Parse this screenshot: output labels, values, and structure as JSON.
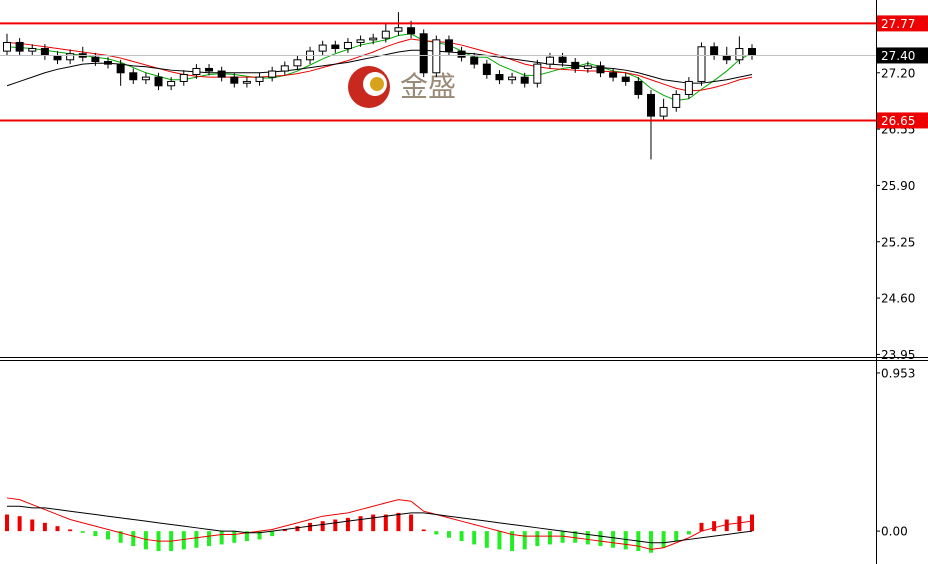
{
  "chart_data": [
    {
      "type": "candlestick",
      "watermark": "金盛",
      "open": [
        27.45,
        27.55,
        27.45,
        27.48,
        27.4,
        27.35,
        27.42,
        27.38,
        27.33,
        27.3,
        27.2,
        27.12,
        27.15,
        27.05,
        27.1,
        27.18,
        27.25,
        27.22,
        27.15,
        27.08,
        27.1,
        27.15,
        27.22,
        27.28,
        27.35,
        27.45,
        27.52,
        27.48,
        27.55,
        27.58,
        27.6,
        27.68,
        27.72,
        27.65,
        27.2,
        27.58,
        27.45,
        27.38,
        27.3,
        27.18,
        27.12,
        27.15,
        27.08,
        27.3,
        27.38,
        27.32,
        27.25,
        27.28,
        27.2,
        27.15,
        27.1,
        26.95,
        26.7,
        26.8,
        26.95,
        27.1,
        27.5,
        27.4,
        27.35,
        27.48
      ],
      "high": [
        27.65,
        27.6,
        27.53,
        27.53,
        27.45,
        27.47,
        27.5,
        27.43,
        27.38,
        27.35,
        27.25,
        27.2,
        27.2,
        27.15,
        27.23,
        27.3,
        27.3,
        27.27,
        27.2,
        27.15,
        27.2,
        27.27,
        27.33,
        27.4,
        27.5,
        27.57,
        27.57,
        27.6,
        27.63,
        27.65,
        27.78,
        27.9,
        27.8,
        27.7,
        27.63,
        27.63,
        27.5,
        27.43,
        27.35,
        27.23,
        27.2,
        27.2,
        27.35,
        27.43,
        27.43,
        27.37,
        27.33,
        27.33,
        27.25,
        27.2,
        27.15,
        27.0,
        26.9,
        27.0,
        27.15,
        27.55,
        27.55,
        27.5,
        27.62,
        27.53
      ],
      "low": [
        27.4,
        27.4,
        27.4,
        27.35,
        27.3,
        27.3,
        27.33,
        27.28,
        27.25,
        27.05,
        27.07,
        27.07,
        27.0,
        27.0,
        27.05,
        27.13,
        27.17,
        27.1,
        27.03,
        27.03,
        27.05,
        27.1,
        27.17,
        27.23,
        27.3,
        27.4,
        27.43,
        27.43,
        27.5,
        27.53,
        27.55,
        27.63,
        27.6,
        27.15,
        27.15,
        27.4,
        27.33,
        27.25,
        27.13,
        27.07,
        27.07,
        27.03,
        27.03,
        27.25,
        27.27,
        27.2,
        27.2,
        27.15,
        27.1,
        27.05,
        26.9,
        26.2,
        26.65,
        26.75,
        26.9,
        27.05,
        27.35,
        27.3,
        27.3,
        27.35
      ],
      "close": [
        27.55,
        27.45,
        27.48,
        27.4,
        27.35,
        27.42,
        27.38,
        27.33,
        27.3,
        27.2,
        27.12,
        27.15,
        27.05,
        27.1,
        27.18,
        27.25,
        27.22,
        27.15,
        27.08,
        27.1,
        27.15,
        27.22,
        27.28,
        27.35,
        27.45,
        27.52,
        27.48,
        27.55,
        27.58,
        27.6,
        27.68,
        27.72,
        27.65,
        27.2,
        27.58,
        27.45,
        27.38,
        27.3,
        27.18,
        27.12,
        27.15,
        27.08,
        27.3,
        27.38,
        27.32,
        27.25,
        27.28,
        27.2,
        27.15,
        27.1,
        26.95,
        26.7,
        26.8,
        26.95,
        27.1,
        27.5,
        27.4,
        27.35,
        27.48,
        27.4
      ],
      "series": [
        {
          "color": "#00aa00",
          "values": [
            27.5,
            27.49,
            27.48,
            27.46,
            27.44,
            27.42,
            27.4,
            27.38,
            27.36,
            27.32,
            27.26,
            27.2,
            27.16,
            27.12,
            27.12,
            27.15,
            27.18,
            27.19,
            27.18,
            27.16,
            27.14,
            27.14,
            27.17,
            27.22,
            27.29,
            27.36,
            27.42,
            27.47,
            27.52,
            27.55,
            27.58,
            27.63,
            27.65,
            27.57,
            27.55,
            27.52,
            27.45,
            27.38,
            27.38,
            27.29,
            27.23,
            27.17,
            27.17,
            27.21,
            27.25,
            27.27,
            27.31,
            27.27,
            27.22,
            27.2,
            27.14,
            27.02,
            26.94,
            26.88,
            26.9,
            27.01,
            27.11,
            27.22,
            27.35,
            27.43
          ]
        },
        {
          "color": "#ee0000",
          "values": [
            27.55,
            27.54,
            27.52,
            27.5,
            27.48,
            27.46,
            27.44,
            27.42,
            27.4,
            27.37,
            27.33,
            27.29,
            27.25,
            27.21,
            27.18,
            27.16,
            27.15,
            27.15,
            27.15,
            27.15,
            27.15,
            27.16,
            27.17,
            27.19,
            27.22,
            27.26,
            27.3,
            27.34,
            27.39,
            27.44,
            27.5,
            27.55,
            27.59,
            27.57,
            27.56,
            27.55,
            27.52,
            27.48,
            27.44,
            27.4,
            27.35,
            27.3,
            27.27,
            27.25,
            27.24,
            27.23,
            27.22,
            27.22,
            27.21,
            27.2,
            27.17,
            27.12,
            27.07,
            27.02,
            26.99,
            27.0,
            27.03,
            27.07,
            27.12,
            27.15
          ]
        },
        {
          "color": "#000000",
          "values": [
            27.05,
            27.1,
            27.15,
            27.2,
            27.24,
            27.27,
            27.3,
            27.31,
            27.31,
            27.3,
            27.28,
            27.27,
            27.25,
            27.23,
            27.22,
            27.21,
            27.2,
            27.2,
            27.2,
            27.2,
            27.2,
            27.21,
            27.22,
            27.24,
            27.26,
            27.28,
            27.3,
            27.32,
            27.35,
            27.38,
            27.41,
            27.44,
            27.46,
            27.46,
            27.45,
            27.44,
            27.43,
            27.42,
            27.4,
            27.38,
            27.36,
            27.34,
            27.32,
            27.3,
            27.29,
            27.28,
            27.27,
            27.26,
            27.25,
            27.23,
            27.2,
            27.16,
            27.12,
            27.1,
            27.08,
            27.08,
            27.1,
            27.12,
            27.15,
            27.18
          ]
        }
      ],
      "levels": [
        {
          "value": 27.77,
          "color": "#ee0000"
        },
        {
          "value": 27.4,
          "label": "27.40",
          "color": "#000000",
          "line_color": "#c0c0c0"
        },
        {
          "value": 26.65,
          "color": "#ee0000"
        }
      ],
      "ylim": [
        23.92,
        28.04
      ],
      "yticks": [
        {
          "value": 27.2,
          "label": "27.20"
        },
        {
          "value": 26.55,
          "label": "26.55"
        },
        {
          "value": 25.9,
          "label": "25.90"
        },
        {
          "value": 25.25,
          "label": "25.25"
        },
        {
          "value": 24.6,
          "label": "24.60"
        },
        {
          "value": 23.95,
          "label": "23.95"
        }
      ]
    },
    {
      "type": "macd",
      "histogram": [
        0.1,
        0.09,
        0.07,
        0.05,
        0.03,
        0.01,
        -0.01,
        -0.03,
        -0.05,
        -0.07,
        -0.09,
        -0.11,
        -0.12,
        -0.12,
        -0.11,
        -0.1,
        -0.09,
        -0.08,
        -0.07,
        -0.06,
        -0.05,
        -0.03,
        0.01,
        0.03,
        0.05,
        0.06,
        0.07,
        0.08,
        0.09,
        0.1,
        0.1,
        0.11,
        0.1,
        0.01,
        -0.02,
        -0.04,
        -0.06,
        -0.08,
        -0.1,
        -0.11,
        -0.12,
        -0.11,
        -0.09,
        -0.08,
        -0.07,
        -0.07,
        -0.08,
        -0.09,
        -0.1,
        -0.11,
        -0.12,
        -0.13,
        -0.1,
        -0.06,
        -0.02,
        0.05,
        0.06,
        0.07,
        0.09,
        0.1
      ],
      "up_color": "#ee0000",
      "down_color": "#22ee22",
      "series": [
        {
          "color": "#ee0000",
          "values": [
            0.2,
            0.19,
            0.16,
            0.13,
            0.1,
            0.07,
            0.05,
            0.03,
            0.01,
            -0.01,
            -0.03,
            -0.05,
            -0.06,
            -0.06,
            -0.05,
            -0.04,
            -0.03,
            -0.02,
            -0.02,
            -0.01,
            0.0,
            0.01,
            0.03,
            0.05,
            0.07,
            0.09,
            0.1,
            0.11,
            0.13,
            0.15,
            0.17,
            0.19,
            0.18,
            0.12,
            0.1,
            0.08,
            0.06,
            0.04,
            0.02,
            0.0,
            -0.02,
            -0.03,
            -0.03,
            -0.03,
            -0.03,
            -0.04,
            -0.05,
            -0.06,
            -0.07,
            -0.08,
            -0.09,
            -0.11,
            -0.1,
            -0.07,
            -0.04,
            0.0,
            0.02,
            0.04,
            0.05,
            0.06
          ]
        },
        {
          "color": "#000000",
          "values": [
            0.15,
            0.15,
            0.14,
            0.14,
            0.13,
            0.12,
            0.11,
            0.1,
            0.09,
            0.08,
            0.07,
            0.06,
            0.05,
            0.04,
            0.03,
            0.02,
            0.01,
            0.0,
            0.0,
            -0.01,
            -0.01,
            0.0,
            0.01,
            0.02,
            0.03,
            0.04,
            0.05,
            0.06,
            0.07,
            0.08,
            0.09,
            0.1,
            0.11,
            0.11,
            0.1,
            0.09,
            0.08,
            0.07,
            0.06,
            0.05,
            0.04,
            0.03,
            0.02,
            0.01,
            0.0,
            -0.01,
            -0.02,
            -0.03,
            -0.04,
            -0.05,
            -0.06,
            -0.07,
            -0.07,
            -0.06,
            -0.05,
            -0.04,
            -0.03,
            -0.02,
            -0.01,
            0.0
          ]
        }
      ],
      "ylim": [
        -0.198,
        1.025
      ],
      "yticks": [
        0.953,
        {
          "value": 0,
          "label": "0.00"
        }
      ]
    }
  ]
}
